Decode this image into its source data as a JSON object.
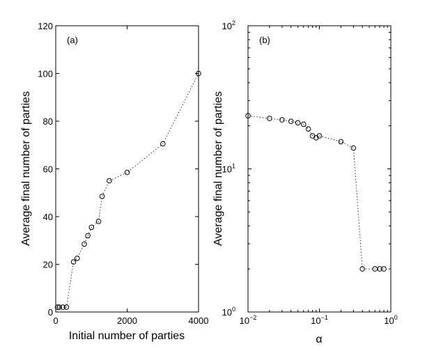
{
  "chart_data": [
    {
      "type": "line",
      "panel_label": "(a)",
      "xlabel": "Initial number of parties",
      "ylabel": "Average final number of parties",
      "xlim": [
        0,
        4000
      ],
      "ylim": [
        0,
        120
      ],
      "xticks": [
        0,
        2000,
        4000
      ],
      "yticks": [
        0,
        20,
        40,
        60,
        80,
        100,
        120
      ],
      "x_scale": "linear",
      "y_scale": "linear",
      "marker": "open-circle",
      "line_style": "dotted",
      "x": [
        50,
        100,
        200,
        300,
        500,
        600,
        800,
        900,
        1000,
        1200,
        1300,
        1500,
        2000,
        3000,
        4000
      ],
      "y": [
        2,
        2,
        2,
        2,
        21,
        22.5,
        28.5,
        32,
        35.5,
        38,
        48.5,
        55,
        58.5,
        70.5,
        100
      ]
    },
    {
      "type": "line",
      "panel_label": "(b)",
      "xlabel": "α",
      "ylabel": "Average final number of parties",
      "xlim": [
        0.01,
        1
      ],
      "ylim": [
        1,
        100
      ],
      "x_scale": "log",
      "y_scale": "log",
      "xticks": [
        {
          "base": "10",
          "exp": "−2"
        },
        {
          "base": "10",
          "exp": "−1"
        },
        {
          "base": "10",
          "exp": "0"
        }
      ],
      "yticks": [
        {
          "base": "10",
          "exp": "0"
        },
        {
          "base": "10",
          "exp": "1"
        },
        {
          "base": "10",
          "exp": "2"
        }
      ],
      "marker": "open-circle",
      "line_style": "dotted",
      "x": [
        0.01,
        0.02,
        0.03,
        0.04,
        0.05,
        0.06,
        0.07,
        0.08,
        0.09,
        0.1,
        0.2,
        0.3,
        0.4,
        0.6,
        0.7,
        0.8
      ],
      "y": [
        23.5,
        22.5,
        22,
        21.5,
        21,
        20.5,
        19,
        17,
        16.5,
        17,
        15.5,
        14,
        2,
        2,
        2,
        2
      ]
    }
  ]
}
